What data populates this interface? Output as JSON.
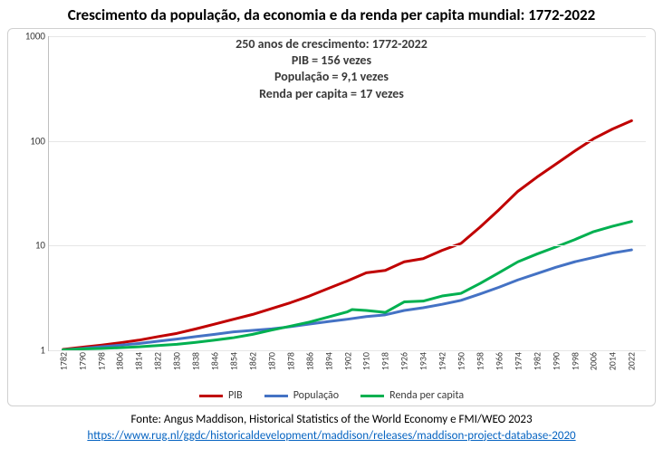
{
  "chart": {
    "type": "line",
    "title": "Crescimento da população, da economia e da renda per capita mundial: 1772-2022",
    "annotation_lines": [
      "250 anos de crescimento: 1772-2022",
      "PIB = 156 vezes",
      "População = 9,1 vezes",
      "Renda per capita = 17 vezes"
    ],
    "annotation_fontsize": 14,
    "annotation_color": "#3a3a3a",
    "title_fontsize": 17,
    "title_color": "#000000",
    "background_color": "#ffffff",
    "border_color": "#d0d0d0",
    "grid_color": "#e6e6e6",
    "axis_color": "#bfbfbf",
    "yscale": "log",
    "ylim": [
      1,
      1000
    ],
    "yticks": [
      1,
      10,
      100,
      1000
    ],
    "xticks": [
      1782,
      1790,
      1798,
      1806,
      1814,
      1822,
      1830,
      1838,
      1846,
      1854,
      1862,
      1870,
      1878,
      1886,
      1894,
      1902,
      1910,
      1918,
      1926,
      1934,
      1942,
      1950,
      1958,
      1966,
      1974,
      1982,
      1990,
      1998,
      2006,
      2014,
      2022
    ],
    "xlim": [
      1776,
      2028
    ],
    "tick_fontsize": 11,
    "series": [
      {
        "name": "PIB",
        "color": "#c00000",
        "width": 3,
        "data": [
          [
            1782,
            1.02
          ],
          [
            1790,
            1.07
          ],
          [
            1798,
            1.12
          ],
          [
            1806,
            1.18
          ],
          [
            1814,
            1.25
          ],
          [
            1822,
            1.35
          ],
          [
            1830,
            1.45
          ],
          [
            1838,
            1.6
          ],
          [
            1846,
            1.78
          ],
          [
            1854,
            1.98
          ],
          [
            1862,
            2.2
          ],
          [
            1870,
            2.5
          ],
          [
            1878,
            2.85
          ],
          [
            1886,
            3.3
          ],
          [
            1894,
            3.9
          ],
          [
            1902,
            4.6
          ],
          [
            1910,
            5.5
          ],
          [
            1918,
            5.8
          ],
          [
            1926,
            7.0
          ],
          [
            1934,
            7.5
          ],
          [
            1942,
            9.0
          ],
          [
            1950,
            10.5
          ],
          [
            1958,
            15.0
          ],
          [
            1966,
            22.0
          ],
          [
            1974,
            33.0
          ],
          [
            1982,
            45.0
          ],
          [
            1990,
            60.0
          ],
          [
            1998,
            80.0
          ],
          [
            2006,
            105.0
          ],
          [
            2014,
            130.0
          ],
          [
            2022,
            156.0
          ]
        ]
      },
      {
        "name": "População",
        "color": "#4472c4",
        "width": 3,
        "data": [
          [
            1782,
            1.01
          ],
          [
            1790,
            1.04
          ],
          [
            1798,
            1.08
          ],
          [
            1806,
            1.12
          ],
          [
            1814,
            1.16
          ],
          [
            1822,
            1.22
          ],
          [
            1830,
            1.28
          ],
          [
            1838,
            1.35
          ],
          [
            1846,
            1.42
          ],
          [
            1854,
            1.5
          ],
          [
            1862,
            1.55
          ],
          [
            1870,
            1.6
          ],
          [
            1878,
            1.68
          ],
          [
            1886,
            1.78
          ],
          [
            1894,
            1.88
          ],
          [
            1902,
            1.98
          ],
          [
            1910,
            2.1
          ],
          [
            1918,
            2.18
          ],
          [
            1926,
            2.4
          ],
          [
            1934,
            2.55
          ],
          [
            1942,
            2.75
          ],
          [
            1950,
            3.0
          ],
          [
            1958,
            3.45
          ],
          [
            1966,
            4.0
          ],
          [
            1974,
            4.7
          ],
          [
            1982,
            5.4
          ],
          [
            1990,
            6.2
          ],
          [
            1998,
            7.0
          ],
          [
            2006,
            7.7
          ],
          [
            2014,
            8.5
          ],
          [
            2022,
            9.1
          ]
        ]
      },
      {
        "name": "Renda per capita",
        "color": "#00b050",
        "width": 3,
        "data": [
          [
            1782,
            1.01
          ],
          [
            1790,
            1.03
          ],
          [
            1798,
            1.04
          ],
          [
            1806,
            1.06
          ],
          [
            1814,
            1.08
          ],
          [
            1822,
            1.11
          ],
          [
            1830,
            1.14
          ],
          [
            1838,
            1.19
          ],
          [
            1846,
            1.25
          ],
          [
            1854,
            1.32
          ],
          [
            1862,
            1.42
          ],
          [
            1870,
            1.56
          ],
          [
            1878,
            1.7
          ],
          [
            1886,
            1.86
          ],
          [
            1894,
            2.08
          ],
          [
            1902,
            2.33
          ],
          [
            1904,
            2.45
          ],
          [
            1910,
            2.4
          ],
          [
            1918,
            2.3
          ],
          [
            1926,
            2.9
          ],
          [
            1934,
            2.95
          ],
          [
            1942,
            3.3
          ],
          [
            1950,
            3.5
          ],
          [
            1958,
            4.35
          ],
          [
            1966,
            5.5
          ],
          [
            1974,
            7.0
          ],
          [
            1982,
            8.3
          ],
          [
            1990,
            9.7
          ],
          [
            1998,
            11.4
          ],
          [
            2006,
            13.6
          ],
          [
            2014,
            15.3
          ],
          [
            2022,
            17.0
          ]
        ]
      }
    ],
    "legend": {
      "position": "bottom",
      "fontsize": 12,
      "items": [
        {
          "label": "PIB",
          "color": "#c00000"
        },
        {
          "label": "População",
          "color": "#4472c4"
        },
        {
          "label": "Renda per capita",
          "color": "#00b050"
        }
      ]
    },
    "footer": {
      "text": "Fonte: Angus Maddison, Historical Statistics of the World Economy e FMI/WEO 2023",
      "link_text": "https://www.rug.nl/ggdc/historicaldevelopment/maddison/releases/maddison-project-database-2020",
      "link_href": "https://www.rug.nl/ggdc/historicaldevelopment/maddison/releases/maddison-project-database-2020",
      "fontsize": 13,
      "text_color": "#000000",
      "link_color": "#0563c1"
    }
  }
}
